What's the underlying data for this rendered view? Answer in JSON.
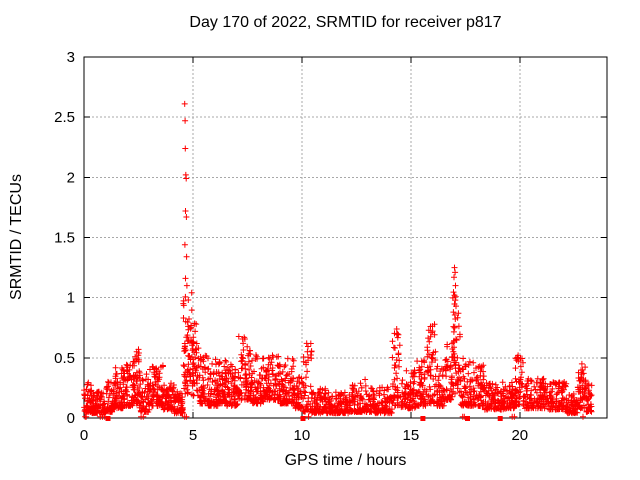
{
  "chart_data": {
    "type": "scatter",
    "title": "Day 170 of 2022, SRMTID for receiver p817",
    "xlabel": "GPS time / hours",
    "ylabel": "SRMTID / TECUs",
    "xlim": [
      0,
      24
    ],
    "ylim": [
      0,
      3
    ],
    "xticks": [
      0,
      5,
      10,
      15,
      20
    ],
    "yticks": [
      0,
      0.5,
      1,
      1.5,
      2,
      2.5,
      3
    ],
    "grid": true,
    "grid_style": "dashed",
    "grid_color": "#a8a8a8",
    "axis_color": "#000000",
    "marker_color": "#ff0000",
    "background_color": "#ffffff",
    "legend": "none",
    "series": [
      {
        "name": "srmtid-points",
        "marker": "plus",
        "color": "#ff0000",
        "envelope_bins": [
          [
            0.0,
            0.35,
            0.05,
            0.3,
            45,
            2.0
          ],
          [
            0.35,
            1.0,
            0.04,
            0.22,
            85,
            2.0
          ],
          [
            1.0,
            1.35,
            0.05,
            0.3,
            45,
            2.0
          ],
          [
            1.35,
            1.85,
            0.08,
            0.42,
            70,
            2.0
          ],
          [
            1.85,
            2.25,
            0.1,
            0.45,
            55,
            2.0
          ],
          [
            2.25,
            2.55,
            0.12,
            0.57,
            45,
            1.8
          ],
          [
            2.55,
            3.0,
            0.05,
            0.38,
            60,
            2.0
          ],
          [
            3.0,
            3.65,
            0.1,
            0.46,
            85,
            2.0
          ],
          [
            3.65,
            4.15,
            0.07,
            0.3,
            65,
            2.0
          ],
          [
            4.15,
            4.55,
            0.04,
            0.22,
            55,
            2.0
          ],
          [
            4.55,
            4.95,
            0.2,
            1.05,
            60,
            1.2
          ],
          [
            4.95,
            5.3,
            0.18,
            0.8,
            45,
            1.6
          ],
          [
            5.3,
            5.65,
            0.12,
            0.55,
            45,
            1.8
          ],
          [
            5.65,
            6.15,
            0.1,
            0.55,
            65,
            2.0
          ],
          [
            6.15,
            6.55,
            0.12,
            0.5,
            55,
            2.0
          ],
          [
            6.55,
            7.1,
            0.1,
            0.45,
            70,
            2.0
          ],
          [
            7.1,
            7.65,
            0.15,
            0.68,
            70,
            2.0
          ],
          [
            7.65,
            8.25,
            0.12,
            0.55,
            75,
            2.0
          ],
          [
            8.25,
            9.0,
            0.15,
            0.52,
            95,
            2.0
          ],
          [
            9.0,
            9.65,
            0.12,
            0.5,
            80,
            2.0
          ],
          [
            9.65,
            10.05,
            0.08,
            0.35,
            45,
            2.0
          ],
          [
            10.05,
            10.45,
            0.05,
            0.62,
            40,
            2.4
          ],
          [
            10.45,
            11.35,
            0.04,
            0.25,
            95,
            2.0
          ],
          [
            11.35,
            12.25,
            0.04,
            0.22,
            95,
            2.0
          ],
          [
            12.25,
            13.35,
            0.05,
            0.3,
            115,
            2.0
          ],
          [
            13.35,
            14.15,
            0.04,
            0.26,
            85,
            2.0
          ],
          [
            14.15,
            14.5,
            0.1,
            0.75,
            45,
            1.6
          ],
          [
            14.5,
            15.25,
            0.08,
            0.4,
            75,
            2.0
          ],
          [
            15.25,
            15.75,
            0.1,
            0.5,
            55,
            2.0
          ],
          [
            15.75,
            16.15,
            0.12,
            0.78,
            50,
            1.5
          ],
          [
            16.15,
            16.65,
            0.1,
            0.5,
            55,
            2.0
          ],
          [
            16.65,
            16.92,
            0.15,
            0.62,
            35,
            1.8
          ],
          [
            16.92,
            17.28,
            0.2,
            1.05,
            50,
            1.3
          ],
          [
            17.28,
            17.85,
            0.1,
            0.52,
            60,
            2.0
          ],
          [
            17.85,
            18.35,
            0.1,
            0.46,
            60,
            2.0
          ],
          [
            18.35,
            19.35,
            0.07,
            0.3,
            105,
            2.0
          ],
          [
            19.35,
            19.78,
            0.08,
            0.3,
            45,
            2.0
          ],
          [
            19.78,
            20.15,
            0.1,
            0.52,
            45,
            1.8
          ],
          [
            20.15,
            21.15,
            0.08,
            0.33,
            105,
            2.0
          ],
          [
            21.15,
            22.15,
            0.07,
            0.3,
            105,
            2.0
          ],
          [
            22.15,
            22.65,
            0.04,
            0.2,
            55,
            2.0
          ],
          [
            22.65,
            23.05,
            0.08,
            0.45,
            50,
            1.8
          ],
          [
            23.05,
            23.3,
            0.05,
            0.3,
            35,
            2.0
          ]
        ],
        "outlier_points": [
          [
            4.62,
            2.61
          ],
          [
            4.64,
            2.47
          ],
          [
            4.65,
            2.24
          ],
          [
            4.67,
            2.02
          ],
          [
            4.69,
            1.99
          ],
          [
            4.66,
            1.72
          ],
          [
            4.7,
            1.67
          ],
          [
            4.63,
            1.44
          ],
          [
            4.71,
            1.34
          ],
          [
            4.66,
            1.16
          ],
          [
            4.72,
            1.1
          ],
          [
            17.0,
            1.25
          ],
          [
            17.03,
            1.21
          ],
          [
            16.98,
            1.17
          ],
          [
            17.05,
            1.1
          ],
          [
            17.0,
            1.02
          ],
          [
            17.04,
            0.98
          ],
          [
            17.07,
            0.93
          ],
          [
            16.95,
            0.88
          ],
          [
            15.9,
            0.76
          ],
          [
            15.93,
            0.71
          ],
          [
            14.35,
            0.74
          ],
          [
            14.38,
            0.7
          ],
          [
            7.35,
            0.67
          ],
          [
            7.3,
            0.62
          ],
          [
            5.15,
            0.78
          ],
          [
            5.1,
            0.72
          ],
          [
            2.5,
            0.57
          ],
          [
            2.52,
            0.54
          ],
          [
            10.22,
            0.62
          ],
          [
            10.25,
            0.55
          ],
          [
            10.28,
            0.48
          ],
          [
            19.92,
            0.52
          ],
          [
            8.65,
            0.52
          ],
          [
            12.9,
            0.32
          ],
          [
            22.85,
            0.45
          ],
          [
            22.88,
            0.4
          ]
        ],
        "zero_value_times": [
          0.05,
          0.1,
          0.75,
          0.85,
          0.95,
          2.62,
          2.72,
          4.62,
          4.7,
          10.3,
          17.38,
          17.45,
          19.65,
          19.75,
          22.9
        ]
      },
      {
        "name": "baseline-squares",
        "marker": "filled-square",
        "color": "#ff0000",
        "points": [
          [
            1.1,
            0
          ],
          [
            10.05,
            0
          ],
          [
            15.55,
            0
          ],
          [
            17.6,
            0
          ],
          [
            19.1,
            0
          ]
        ]
      }
    ]
  }
}
